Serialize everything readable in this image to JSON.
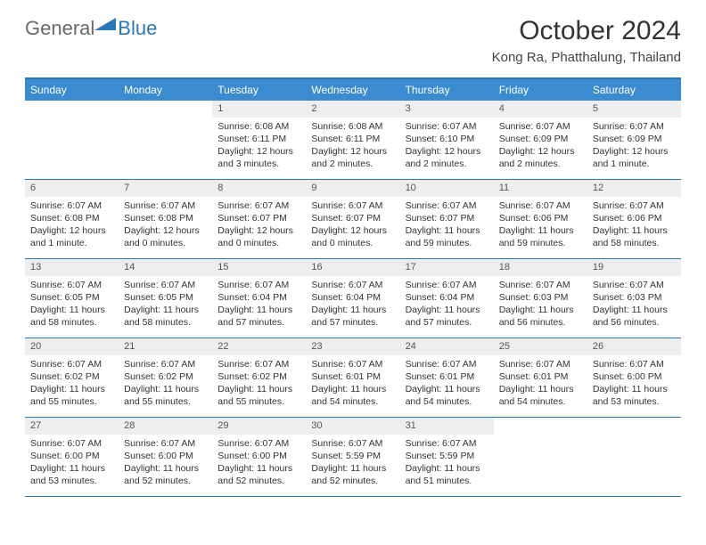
{
  "logo": {
    "general": "General",
    "blue": "Blue"
  },
  "title": "October 2024",
  "location": "Kong Ra, Phatthalung, Thailand",
  "theme": {
    "header_bg": "#3b8bd0",
    "border": "#2a77bb",
    "daynum_bg": "#eeeeee",
    "text": "#333333"
  },
  "dow": [
    "Sunday",
    "Monday",
    "Tuesday",
    "Wednesday",
    "Thursday",
    "Friday",
    "Saturday"
  ],
  "weeks": [
    [
      null,
      null,
      {
        "n": "1",
        "sr": "6:08 AM",
        "ss": "6:11 PM",
        "dl": "12 hours and 3 minutes."
      },
      {
        "n": "2",
        "sr": "6:08 AM",
        "ss": "6:11 PM",
        "dl": "12 hours and 2 minutes."
      },
      {
        "n": "3",
        "sr": "6:07 AM",
        "ss": "6:10 PM",
        "dl": "12 hours and 2 minutes."
      },
      {
        "n": "4",
        "sr": "6:07 AM",
        "ss": "6:09 PM",
        "dl": "12 hours and 2 minutes."
      },
      {
        "n": "5",
        "sr": "6:07 AM",
        "ss": "6:09 PM",
        "dl": "12 hours and 1 minute."
      }
    ],
    [
      {
        "n": "6",
        "sr": "6:07 AM",
        "ss": "6:08 PM",
        "dl": "12 hours and 1 minute."
      },
      {
        "n": "7",
        "sr": "6:07 AM",
        "ss": "6:08 PM",
        "dl": "12 hours and 0 minutes."
      },
      {
        "n": "8",
        "sr": "6:07 AM",
        "ss": "6:07 PM",
        "dl": "12 hours and 0 minutes."
      },
      {
        "n": "9",
        "sr": "6:07 AM",
        "ss": "6:07 PM",
        "dl": "12 hours and 0 minutes."
      },
      {
        "n": "10",
        "sr": "6:07 AM",
        "ss": "6:07 PM",
        "dl": "11 hours and 59 minutes."
      },
      {
        "n": "11",
        "sr": "6:07 AM",
        "ss": "6:06 PM",
        "dl": "11 hours and 59 minutes."
      },
      {
        "n": "12",
        "sr": "6:07 AM",
        "ss": "6:06 PM",
        "dl": "11 hours and 58 minutes."
      }
    ],
    [
      {
        "n": "13",
        "sr": "6:07 AM",
        "ss": "6:05 PM",
        "dl": "11 hours and 58 minutes."
      },
      {
        "n": "14",
        "sr": "6:07 AM",
        "ss": "6:05 PM",
        "dl": "11 hours and 58 minutes."
      },
      {
        "n": "15",
        "sr": "6:07 AM",
        "ss": "6:04 PM",
        "dl": "11 hours and 57 minutes."
      },
      {
        "n": "16",
        "sr": "6:07 AM",
        "ss": "6:04 PM",
        "dl": "11 hours and 57 minutes."
      },
      {
        "n": "17",
        "sr": "6:07 AM",
        "ss": "6:04 PM",
        "dl": "11 hours and 57 minutes."
      },
      {
        "n": "18",
        "sr": "6:07 AM",
        "ss": "6:03 PM",
        "dl": "11 hours and 56 minutes."
      },
      {
        "n": "19",
        "sr": "6:07 AM",
        "ss": "6:03 PM",
        "dl": "11 hours and 56 minutes."
      }
    ],
    [
      {
        "n": "20",
        "sr": "6:07 AM",
        "ss": "6:02 PM",
        "dl": "11 hours and 55 minutes."
      },
      {
        "n": "21",
        "sr": "6:07 AM",
        "ss": "6:02 PM",
        "dl": "11 hours and 55 minutes."
      },
      {
        "n": "22",
        "sr": "6:07 AM",
        "ss": "6:02 PM",
        "dl": "11 hours and 55 minutes."
      },
      {
        "n": "23",
        "sr": "6:07 AM",
        "ss": "6:01 PM",
        "dl": "11 hours and 54 minutes."
      },
      {
        "n": "24",
        "sr": "6:07 AM",
        "ss": "6:01 PM",
        "dl": "11 hours and 54 minutes."
      },
      {
        "n": "25",
        "sr": "6:07 AM",
        "ss": "6:01 PM",
        "dl": "11 hours and 54 minutes."
      },
      {
        "n": "26",
        "sr": "6:07 AM",
        "ss": "6:00 PM",
        "dl": "11 hours and 53 minutes."
      }
    ],
    [
      {
        "n": "27",
        "sr": "6:07 AM",
        "ss": "6:00 PM",
        "dl": "11 hours and 53 minutes."
      },
      {
        "n": "28",
        "sr": "6:07 AM",
        "ss": "6:00 PM",
        "dl": "11 hours and 52 minutes."
      },
      {
        "n": "29",
        "sr": "6:07 AM",
        "ss": "6:00 PM",
        "dl": "11 hours and 52 minutes."
      },
      {
        "n": "30",
        "sr": "6:07 AM",
        "ss": "5:59 PM",
        "dl": "11 hours and 52 minutes."
      },
      {
        "n": "31",
        "sr": "6:07 AM",
        "ss": "5:59 PM",
        "dl": "11 hours and 51 minutes."
      },
      null,
      null
    ]
  ],
  "labels": {
    "sunrise": "Sunrise:",
    "sunset": "Sunset:",
    "daylight": "Daylight:"
  }
}
